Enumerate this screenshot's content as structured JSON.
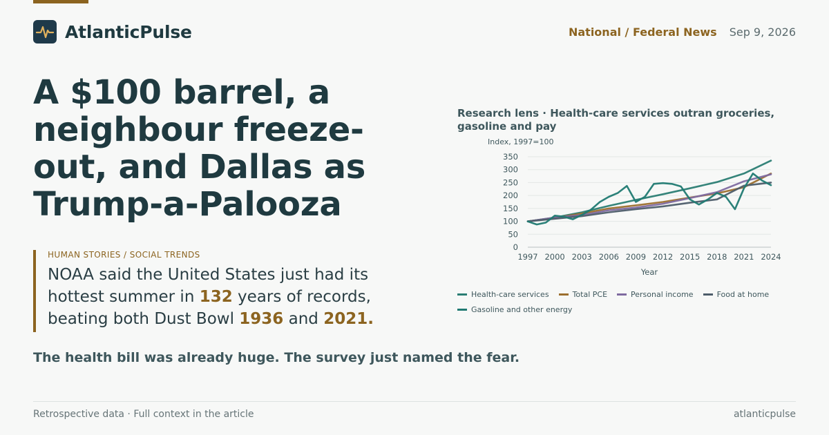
{
  "brand": {
    "name": "AtlanticPulse",
    "logo_icon": "pulse-icon"
  },
  "header": {
    "section": "National / Federal News",
    "date": "Sep 9, 2026"
  },
  "headline": "A $100 barrel, a neighbour freeze-out, and Dallas as Trump-a-Palooza",
  "kicker": "HUMAN STORIES / SOCIAL TRENDS",
  "dek": {
    "p1": "NOAA said the United States just had its hottest summer in ",
    "n1": "132",
    "p2": " years of records, beating both Dust Bowl ",
    "n2": "1936",
    "p3": " and ",
    "n3": "2021."
  },
  "subhead": "The health bill was already huge. The survey just named the fear.",
  "footer": {
    "left": "Retrospective data · Full context in the article",
    "right": "atlanticpulse"
  },
  "colors": {
    "accent": "#8c6420",
    "dark": "#1f3a40"
  },
  "chart_data": {
    "type": "line",
    "title": "Research lens · Health-care services outran groceries, gasoline and pay",
    "ylabel": "Index, 1997=100",
    "xlabel": "Year",
    "ylim": [
      0,
      350
    ],
    "xlim": [
      1997,
      2024
    ],
    "yticks": [
      0,
      50,
      100,
      150,
      200,
      250,
      300,
      350
    ],
    "xticks": [
      1997,
      2000,
      2003,
      2006,
      2009,
      2012,
      2015,
      2018,
      2021,
      2024
    ],
    "grid": true,
    "legend": "bottom",
    "series": [
      {
        "name": "Health-care services",
        "color": "#2a7d73",
        "x": [
          1997,
          2000,
          2003,
          2006,
          2009,
          2012,
          2015,
          2018,
          2021,
          2024
        ],
        "y": [
          100,
          115,
          135,
          160,
          183,
          205,
          228,
          252,
          285,
          335
        ]
      },
      {
        "name": "Total PCE",
        "color": "#9c6f2e",
        "x": [
          1997,
          2000,
          2003,
          2006,
          2009,
          2012,
          2015,
          2018,
          2021,
          2024
        ],
        "y": [
          100,
          113,
          130,
          150,
          162,
          175,
          192,
          208,
          232,
          285
        ]
      },
      {
        "name": "Personal income",
        "color": "#7e6aa0",
        "x": [
          1997,
          2000,
          2003,
          2006,
          2009,
          2012,
          2015,
          2018,
          2021,
          2024
        ],
        "y": [
          100,
          115,
          124,
          143,
          153,
          168,
          190,
          213,
          255,
          282
        ]
      },
      {
        "name": "Food at home",
        "color": "#4d5d6a",
        "x": [
          1997,
          2000,
          2003,
          2006,
          2009,
          2012,
          2015,
          2018,
          2021,
          2024
        ],
        "y": [
          100,
          110,
          120,
          135,
          147,
          158,
          172,
          185,
          238,
          250
        ]
      },
      {
        "name": "Gasoline and other energy",
        "color": "#207a72",
        "x": [
          1997,
          1998,
          1999,
          2000,
          2001,
          2002,
          2003,
          2004,
          2005,
          2006,
          2007,
          2008,
          2009,
          2010,
          2011,
          2012,
          2013,
          2014,
          2015,
          2016,
          2017,
          2018,
          2019,
          2020,
          2021,
          2022,
          2023,
          2024
        ],
        "y": [
          100,
          88,
          95,
          122,
          118,
          108,
          125,
          145,
          175,
          195,
          210,
          237,
          175,
          195,
          245,
          248,
          245,
          235,
          185,
          165,
          185,
          210,
          195,
          147,
          228,
          285,
          258,
          240
        ]
      }
    ]
  }
}
